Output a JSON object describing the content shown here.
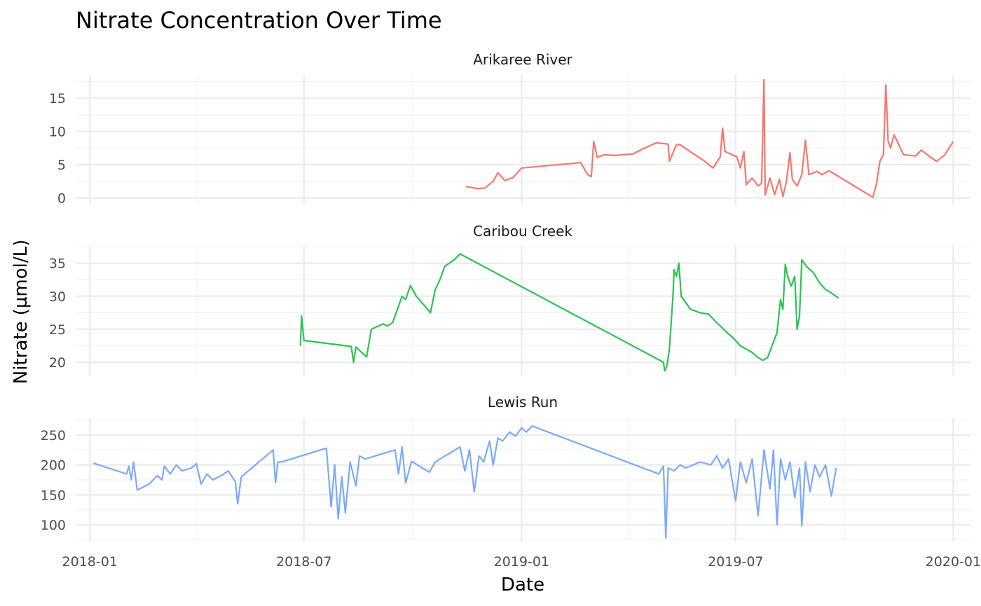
{
  "chart_data": {
    "type": "line",
    "title": "Nitrate Concentration Over Time",
    "xlabel": "Date",
    "ylabel": "Nitrate (µmol/L)",
    "x_ticks": [
      "2018-01",
      "2018-07",
      "2019-01",
      "2019-07",
      "2020-01"
    ],
    "xlim": [
      "2017-12-20",
      "2020-01-15"
    ],
    "grid": true,
    "legend": "none",
    "panels": [
      {
        "name": "Arikaree River",
        "color": "#F8766D",
        "ylim": [
          -1,
          18.5
        ],
        "y_ticks": [
          0,
          5,
          10,
          15
        ],
        "points": [
          [
            "2018-11-15",
            1.7
          ],
          [
            "2018-11-25",
            1.4
          ],
          [
            "2018-12-01",
            1.5
          ],
          [
            "2018-12-08",
            2.5
          ],
          [
            "2018-12-12",
            3.8
          ],
          [
            "2018-12-18",
            2.6
          ],
          [
            "2018-12-25",
            3.1
          ],
          [
            "2019-01-01",
            4.5
          ],
          [
            "2019-02-20",
            5.3
          ],
          [
            "2019-02-26",
            3.5
          ],
          [
            "2019-03-01",
            3.2
          ],
          [
            "2019-03-03",
            8.5
          ],
          [
            "2019-03-06",
            6.1
          ],
          [
            "2019-03-12",
            6.5
          ],
          [
            "2019-03-20",
            6.4
          ],
          [
            "2019-04-05",
            6.6
          ],
          [
            "2019-04-15",
            7.5
          ],
          [
            "2019-04-25",
            8.3
          ],
          [
            "2019-05-05",
            8.1
          ],
          [
            "2019-05-06",
            5.5
          ],
          [
            "2019-05-12",
            8.0
          ],
          [
            "2019-05-15",
            8.0
          ],
          [
            "2019-06-05",
            5.5
          ],
          [
            "2019-06-12",
            4.5
          ],
          [
            "2019-06-18",
            6.2
          ],
          [
            "2019-06-20",
            10.5
          ],
          [
            "2019-06-22",
            7.0
          ],
          [
            "2019-06-28",
            6.5
          ],
          [
            "2019-07-02",
            6.2
          ],
          [
            "2019-07-05",
            4.5
          ],
          [
            "2019-07-08",
            7.0
          ],
          [
            "2019-07-10",
            2.0
          ],
          [
            "2019-07-15",
            3.0
          ],
          [
            "2019-07-20",
            1.8
          ],
          [
            "2019-07-23",
            2.2
          ],
          [
            "2019-07-25",
            17.8
          ],
          [
            "2019-07-26",
            0.4
          ],
          [
            "2019-07-30",
            3.0
          ],
          [
            "2019-08-03",
            0.5
          ],
          [
            "2019-08-07",
            2.8
          ],
          [
            "2019-08-10",
            0.2
          ],
          [
            "2019-08-13",
            2.5
          ],
          [
            "2019-08-16",
            6.8
          ],
          [
            "2019-08-18",
            2.8
          ],
          [
            "2019-08-22",
            1.8
          ],
          [
            "2019-08-26",
            3.5
          ],
          [
            "2019-08-29",
            8.7
          ],
          [
            "2019-09-01",
            3.5
          ],
          [
            "2019-09-08",
            4.0
          ],
          [
            "2019-09-12",
            3.5
          ],
          [
            "2019-09-18",
            4.1
          ],
          [
            "2019-10-25",
            0.1
          ],
          [
            "2019-10-28",
            2.0
          ],
          [
            "2019-10-31",
            5.5
          ],
          [
            "2019-11-03",
            6.5
          ],
          [
            "2019-11-05",
            17.0
          ],
          [
            "2019-11-07",
            8.5
          ],
          [
            "2019-11-09",
            7.5
          ],
          [
            "2019-11-12",
            9.5
          ],
          [
            "2019-11-16",
            8.0
          ],
          [
            "2019-11-20",
            6.5
          ],
          [
            "2019-11-30",
            6.3
          ],
          [
            "2019-12-05",
            7.2
          ],
          [
            "2019-12-10",
            6.5
          ],
          [
            "2019-12-18",
            5.5
          ],
          [
            "2019-12-25",
            6.5
          ],
          [
            "2020-01-01",
            8.5
          ]
        ]
      },
      {
        "name": "Caribou Creek",
        "color": "#2DC353",
        "ylim": [
          18,
          37.5
        ],
        "y_ticks": [
          20,
          25,
          30,
          35
        ],
        "points": [
          [
            "2018-06-28",
            22.5
          ],
          [
            "2018-06-29",
            27.0
          ],
          [
            "2018-06-30",
            25.0
          ],
          [
            "2018-07-01",
            23.3
          ],
          [
            "2018-08-10",
            22.4
          ],
          [
            "2018-08-12",
            20.0
          ],
          [
            "2018-08-14",
            22.3
          ],
          [
            "2018-08-23",
            20.8
          ],
          [
            "2018-08-27",
            25.0
          ],
          [
            "2018-09-06",
            25.8
          ],
          [
            "2018-09-10",
            25.5
          ],
          [
            "2018-09-14",
            26.0
          ],
          [
            "2018-09-18",
            28.0
          ],
          [
            "2018-09-22",
            30.0
          ],
          [
            "2018-09-25",
            29.5
          ],
          [
            "2018-09-29",
            31.6
          ],
          [
            "2018-10-04",
            30.0
          ],
          [
            "2018-10-16",
            27.5
          ],
          [
            "2018-10-20",
            31.0
          ],
          [
            "2018-10-24",
            32.5
          ],
          [
            "2018-10-28",
            34.5
          ],
          [
            "2018-11-05",
            35.5
          ],
          [
            "2018-11-10",
            36.4
          ],
          [
            "2019-05-01",
            20.0
          ],
          [
            "2019-05-02",
            18.7
          ],
          [
            "2019-05-04",
            19.5
          ],
          [
            "2019-05-06",
            22.0
          ],
          [
            "2019-05-09",
            30.0
          ],
          [
            "2019-05-10",
            34.0
          ],
          [
            "2019-05-12",
            33.0
          ],
          [
            "2019-05-14",
            35.0
          ],
          [
            "2019-05-16",
            30.0
          ],
          [
            "2019-05-20",
            29.0
          ],
          [
            "2019-05-24",
            28.0
          ],
          [
            "2019-06-01",
            27.5
          ],
          [
            "2019-06-08",
            27.3
          ],
          [
            "2019-06-15",
            26.0
          ],
          [
            "2019-06-22",
            24.8
          ],
          [
            "2019-06-30",
            23.5
          ],
          [
            "2019-07-05",
            22.5
          ],
          [
            "2019-07-10",
            22.0
          ],
          [
            "2019-07-15",
            21.5
          ],
          [
            "2019-07-20",
            20.7
          ],
          [
            "2019-07-24",
            20.3
          ],
          [
            "2019-07-28",
            20.7
          ],
          [
            "2019-08-05",
            24.5
          ],
          [
            "2019-08-08",
            29.5
          ],
          [
            "2019-08-10",
            28.0
          ],
          [
            "2019-08-12",
            34.8
          ],
          [
            "2019-08-14",
            33.0
          ],
          [
            "2019-08-17",
            31.5
          ],
          [
            "2019-08-20",
            33.0
          ],
          [
            "2019-08-22",
            25.0
          ],
          [
            "2019-08-24",
            27.0
          ],
          [
            "2019-08-26",
            35.5
          ],
          [
            "2019-08-30",
            34.5
          ],
          [
            "2019-09-05",
            33.5
          ],
          [
            "2019-09-10",
            32.0
          ],
          [
            "2019-09-15",
            31.0
          ],
          [
            "2019-09-20",
            30.5
          ],
          [
            "2019-09-26",
            29.7
          ]
        ]
      },
      {
        "name": "Lewis Run",
        "color": "#7AAAFB",
        "ylim": [
          72,
          278
        ],
        "y_ticks": [
          100,
          150,
          200,
          250
        ],
        "points": [
          [
            "2018-01-04",
            203
          ],
          [
            "2018-02-01",
            185
          ],
          [
            "2018-02-03",
            198
          ],
          [
            "2018-02-05",
            175
          ],
          [
            "2018-02-07",
            205
          ],
          [
            "2018-02-10",
            158
          ],
          [
            "2018-02-20",
            168
          ],
          [
            "2018-02-27",
            182
          ],
          [
            "2018-03-03",
            175
          ],
          [
            "2018-03-05",
            198
          ],
          [
            "2018-03-10",
            185
          ],
          [
            "2018-03-15",
            200
          ],
          [
            "2018-03-20",
            190
          ],
          [
            "2018-03-28",
            195
          ],
          [
            "2018-04-01",
            202
          ],
          [
            "2018-04-05",
            168
          ],
          [
            "2018-04-10",
            185
          ],
          [
            "2018-04-15",
            175
          ],
          [
            "2018-04-22",
            182
          ],
          [
            "2018-04-28",
            190
          ],
          [
            "2018-05-04",
            172
          ],
          [
            "2018-05-06",
            135
          ],
          [
            "2018-05-09",
            180
          ],
          [
            "2018-06-05",
            225
          ],
          [
            "2018-06-07",
            170
          ],
          [
            "2018-06-09",
            205
          ],
          [
            "2018-06-12",
            205
          ],
          [
            "2018-07-20",
            228
          ],
          [
            "2018-07-24",
            130
          ],
          [
            "2018-07-27",
            200
          ],
          [
            "2018-07-30",
            110
          ],
          [
            "2018-08-02",
            180
          ],
          [
            "2018-08-05",
            120
          ],
          [
            "2018-08-09",
            205
          ],
          [
            "2018-08-14",
            165
          ],
          [
            "2018-08-17",
            215
          ],
          [
            "2018-08-22",
            210
          ],
          [
            "2018-09-16",
            225
          ],
          [
            "2018-09-19",
            185
          ],
          [
            "2018-09-22",
            230
          ],
          [
            "2018-09-25",
            170
          ],
          [
            "2018-09-30",
            206
          ],
          [
            "2018-10-15",
            188
          ],
          [
            "2018-10-20",
            205
          ],
          [
            "2018-11-10",
            230
          ],
          [
            "2018-11-14",
            190
          ],
          [
            "2018-11-18",
            225
          ],
          [
            "2018-11-22",
            155
          ],
          [
            "2018-11-26",
            215
          ],
          [
            "2018-11-30",
            205
          ],
          [
            "2018-12-05",
            240
          ],
          [
            "2018-12-08",
            200
          ],
          [
            "2018-12-12",
            245
          ],
          [
            "2018-12-16",
            240
          ],
          [
            "2018-12-22",
            255
          ],
          [
            "2018-12-27",
            248
          ],
          [
            "2019-01-01",
            262
          ],
          [
            "2019-01-05",
            255
          ],
          [
            "2019-01-10",
            265
          ],
          [
            "2019-04-27",
            185
          ],
          [
            "2019-05-01",
            198
          ],
          [
            "2019-05-03",
            78
          ],
          [
            "2019-05-05",
            195
          ],
          [
            "2019-05-10",
            190
          ],
          [
            "2019-05-15",
            200
          ],
          [
            "2019-05-20",
            195
          ],
          [
            "2019-06-01",
            205
          ],
          [
            "2019-06-10",
            200
          ],
          [
            "2019-06-15",
            215
          ],
          [
            "2019-06-20",
            195
          ],
          [
            "2019-06-25",
            210
          ],
          [
            "2019-07-01",
            140
          ],
          [
            "2019-07-05",
            205
          ],
          [
            "2019-07-10",
            170
          ],
          [
            "2019-07-15",
            210
          ],
          [
            "2019-07-20",
            115
          ],
          [
            "2019-07-25",
            225
          ],
          [
            "2019-07-30",
            160
          ],
          [
            "2019-08-02",
            225
          ],
          [
            "2019-08-05",
            100
          ],
          [
            "2019-08-08",
            210
          ],
          [
            "2019-08-12",
            175
          ],
          [
            "2019-08-16",
            205
          ],
          [
            "2019-08-20",
            145
          ],
          [
            "2019-08-24",
            195
          ],
          [
            "2019-08-26",
            98
          ],
          [
            "2019-08-29",
            205
          ],
          [
            "2019-09-02",
            155
          ],
          [
            "2019-09-06",
            200
          ],
          [
            "2019-09-10",
            180
          ],
          [
            "2019-09-15",
            200
          ],
          [
            "2019-09-20",
            148
          ],
          [
            "2019-09-24",
            195
          ]
        ]
      }
    ]
  }
}
